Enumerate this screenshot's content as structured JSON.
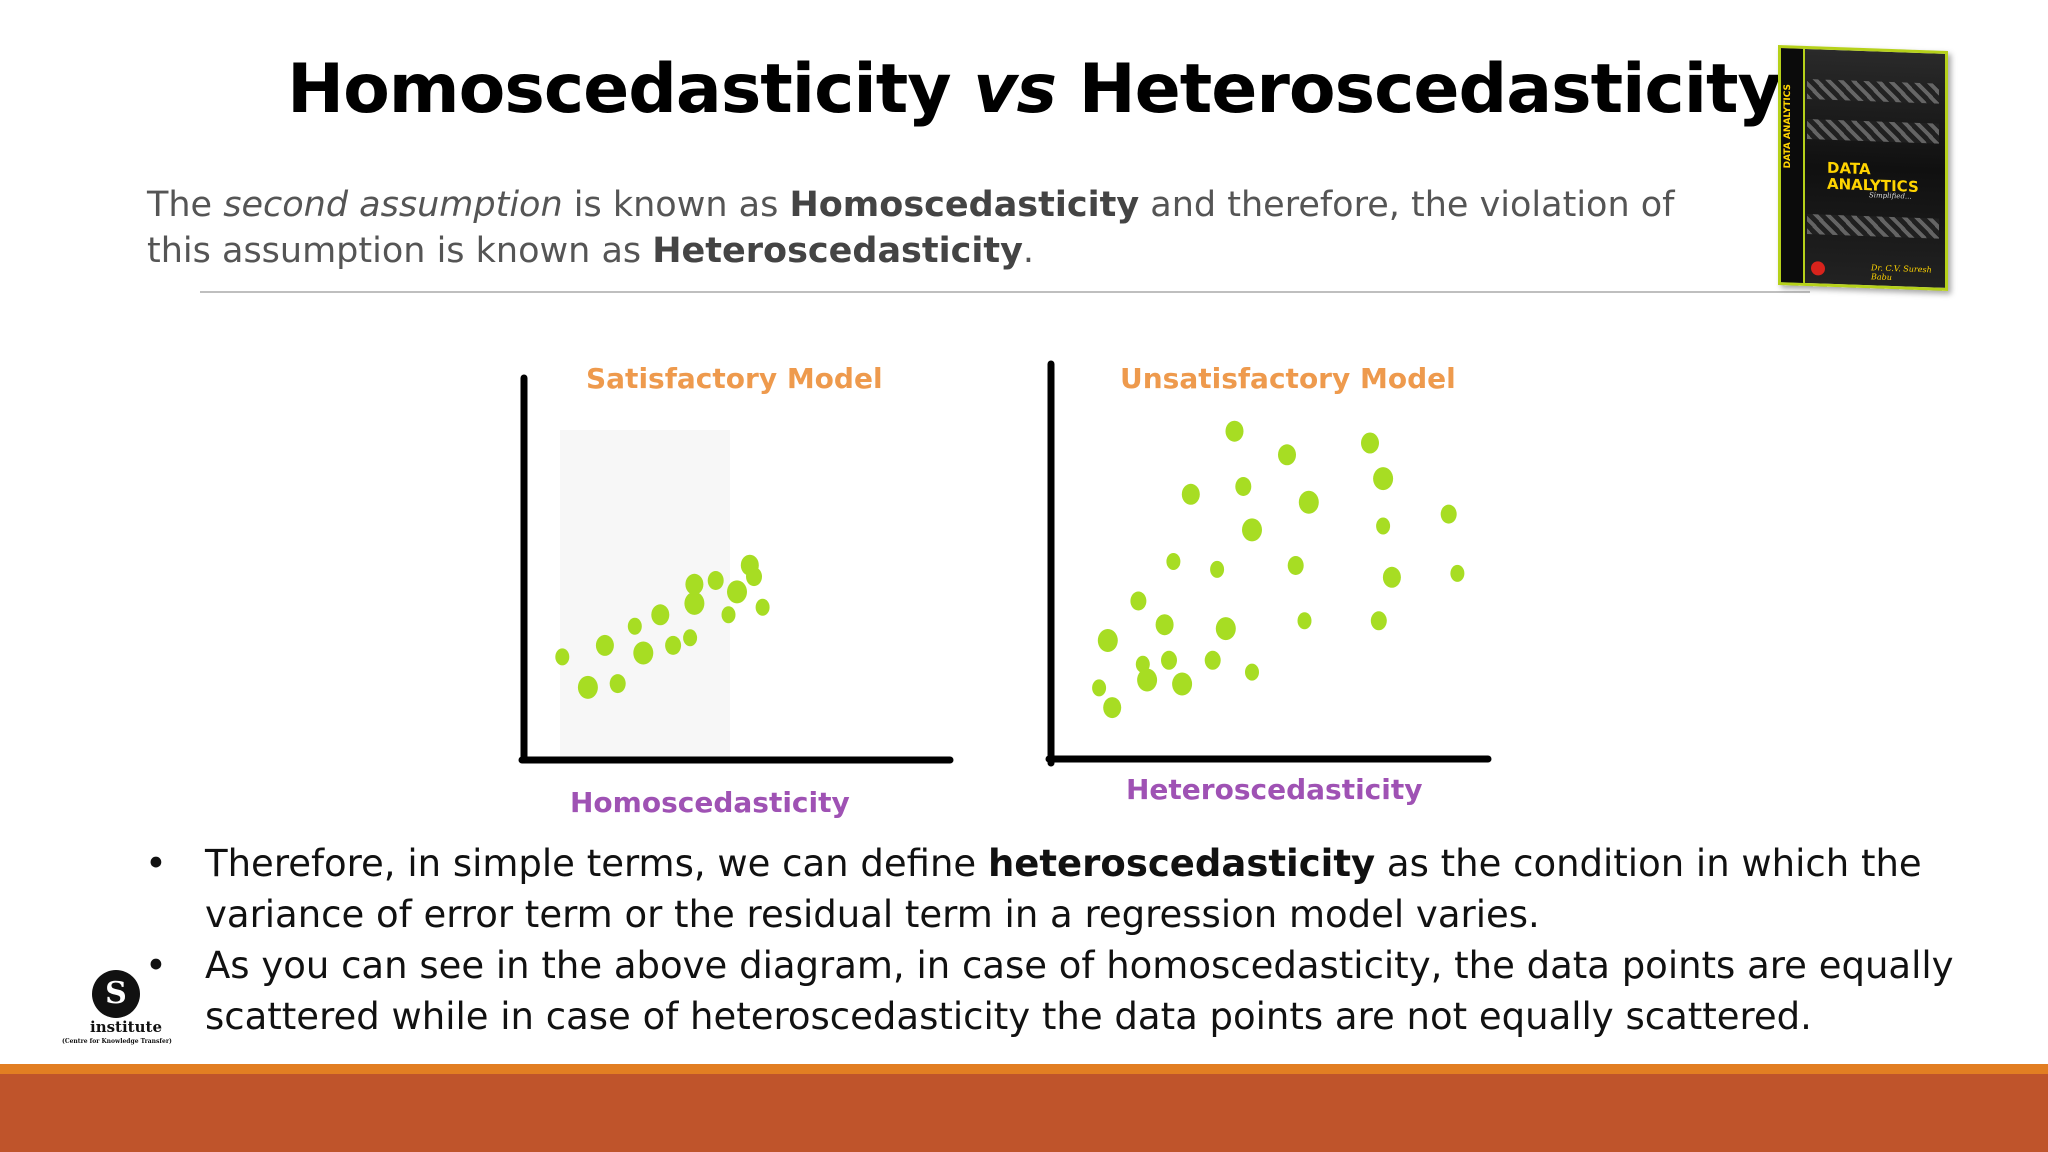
{
  "slide": {
    "title_part1": "Homoscedasticity ",
    "title_vs": "vs",
    "title_part2": " Heteroscedasticity",
    "intro": {
      "t1": "The ",
      "t2": "second assumption",
      "t3": " is known as ",
      "t4": "Homoscedasticity",
      "t5": " and therefore, the violation of this assumption is known as ",
      "t6": "Heteroscedasticity",
      "t7": "."
    },
    "bullets": [
      {
        "marker": "•",
        "pre": "Therefore, in simple terms, we can define ",
        "bold": "heteroscedasticity",
        "post": " as the condition in which the variance of error term or the residual term in a regression model varies."
      },
      {
        "marker": "•",
        "text": "As you can see in the above diagram, in case of homoscedasticity, the data points are equally scattered while in case of heteroscedasticity the data points are not equally scattered."
      }
    ]
  },
  "book": {
    "spine_text": "DATA ANALYTICS",
    "title_line1": "DATA",
    "title_line2": "ANALYTICS",
    "subtitle": "Simplified...",
    "author": "Dr. C.V. Suresh Babu"
  },
  "logo": {
    "mark": "S",
    "name": "institute",
    "tagline": "(Centre for Knowledge Transfer)"
  },
  "colors": {
    "point": "#a7dd23",
    "axis": "#000000",
    "chart_title": "#ee9a4d",
    "chart_xlabel": "#9f52b4",
    "footer_band": "#bf542b",
    "footer_stripe": "#e27e22"
  },
  "chart_data": [
    {
      "type": "scatter",
      "title": "Satisfactory Model",
      "xlabel": "Homoscedasticity",
      "ylabel": "",
      "xlim": [
        0,
        100
      ],
      "ylim": [
        0,
        100
      ],
      "points": [
        [
          9,
          27
        ],
        [
          15,
          19
        ],
        [
          19,
          30
        ],
        [
          22,
          20
        ],
        [
          26,
          35
        ],
        [
          28,
          28
        ],
        [
          32,
          38
        ],
        [
          35,
          30
        ],
        [
          39,
          32
        ],
        [
          40,
          41
        ],
        [
          40,
          46
        ],
        [
          45,
          47
        ],
        [
          48,
          38
        ],
        [
          50,
          44
        ],
        [
          53,
          51
        ],
        [
          54,
          48
        ],
        [
          56,
          40
        ]
      ]
    },
    {
      "type": "scatter",
      "title": "Unsatisfactory Model",
      "xlabel": "Heteroscedasticity",
      "ylabel": "",
      "xlim": [
        0,
        100
      ],
      "ylim": [
        0,
        100
      ],
      "points": [
        [
          11,
          18
        ],
        [
          13,
          30
        ],
        [
          14,
          13
        ],
        [
          20,
          40
        ],
        [
          21,
          24
        ],
        [
          22,
          20
        ],
        [
          26,
          34
        ],
        [
          27,
          25
        ],
        [
          28,
          50
        ],
        [
          30,
          19
        ],
        [
          32,
          67
        ],
        [
          37,
          25
        ],
        [
          38,
          48
        ],
        [
          40,
          33
        ],
        [
          42,
          83
        ],
        [
          44,
          69
        ],
        [
          46,
          22
        ],
        [
          46,
          58
        ],
        [
          54,
          77
        ],
        [
          56,
          49
        ],
        [
          58,
          35
        ],
        [
          59,
          65
        ],
        [
          73,
          80
        ],
        [
          75,
          35
        ],
        [
          76,
          59
        ],
        [
          76,
          71
        ],
        [
          78,
          46
        ],
        [
          91,
          62
        ],
        [
          93,
          47
        ]
      ]
    }
  ]
}
